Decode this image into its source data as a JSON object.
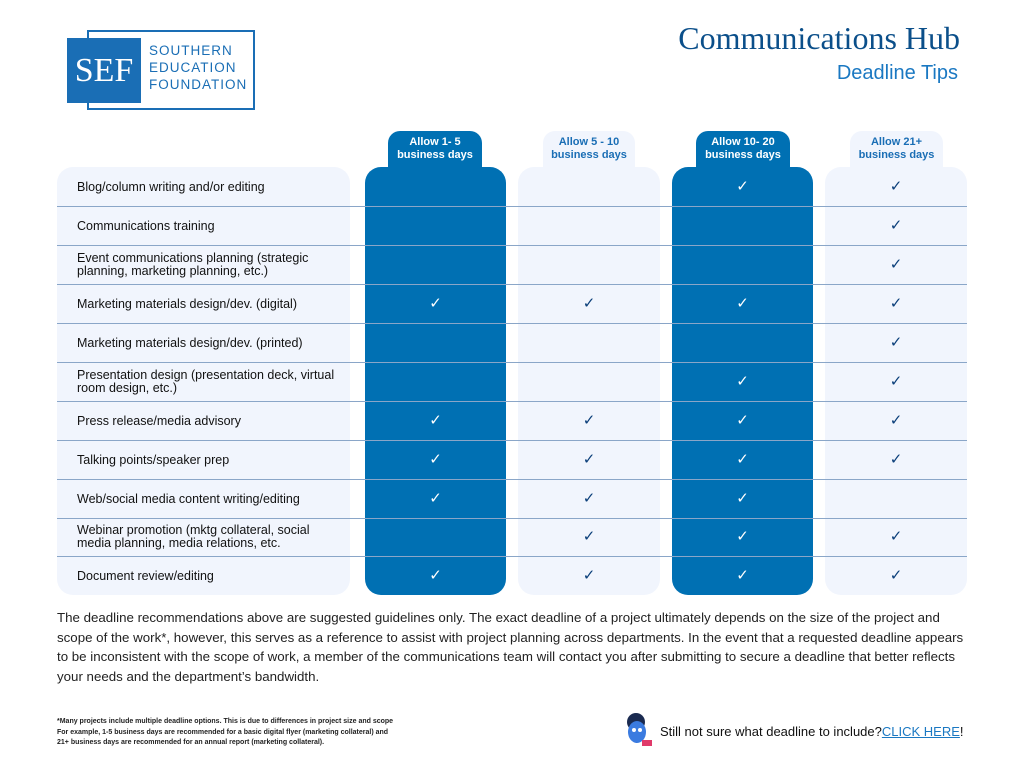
{
  "logo": {
    "abbr": "SEF",
    "line1": "SOUTHERN",
    "line2": "EDUCATION",
    "line3": "FOUNDATION"
  },
  "header": {
    "title": "Communications Hub",
    "subtitle": "Deadline Tips"
  },
  "columns": [
    {
      "line1": "Allow 1- 5",
      "line2": "business days"
    },
    {
      "line1": "Allow 5 - 10",
      "line2": "business days"
    },
    {
      "line1": "Allow 10- 20",
      "line2": "business days"
    },
    {
      "line1": "Allow 21+",
      "line2": "business days"
    }
  ],
  "rows": [
    {
      "label": "Blog/column writing and/or editing",
      "checks": [
        false,
        false,
        true,
        true
      ]
    },
    {
      "label": "Communications training",
      "checks": [
        false,
        false,
        false,
        true
      ]
    },
    {
      "label": "Event communications planning (strategic planning, marketing planning, etc.)",
      "checks": [
        false,
        false,
        false,
        true
      ]
    },
    {
      "label": "Marketing materials design/dev. (digital)",
      "checks": [
        true,
        true,
        true,
        true
      ]
    },
    {
      "label": "Marketing materials design/dev. (printed)",
      "checks": [
        false,
        false,
        false,
        true
      ]
    },
    {
      "label": "Presentation design (presentation deck, virtual room design, etc.)",
      "checks": [
        false,
        false,
        true,
        true
      ]
    },
    {
      "label": "Press release/media advisory",
      "checks": [
        true,
        true,
        true,
        true
      ]
    },
    {
      "label": "Talking points/speaker prep",
      "checks": [
        true,
        true,
        true,
        true
      ]
    },
    {
      "label": "Web/social media content writing/editing",
      "checks": [
        true,
        true,
        true,
        false
      ]
    },
    {
      "label": "Webinar promotion (mktg collateral, social media planning, media relations, etc.",
      "checks": [
        false,
        true,
        true,
        true
      ]
    },
    {
      "label": "Document review/editing",
      "checks": [
        true,
        true,
        true,
        true
      ]
    }
  ],
  "paragraph": "The deadline recommendations above are suggested guidelines only. The exact deadline of a project ultimately depends on the size of the project and scope of the work*, however, this serves as a reference to assist with project planning across departments. In the event that a requested deadline appears to be inconsistent with the scope of work, a member of the communications team will contact you after submitting to secure a deadline that better reflects your needs and the department’s bandwidth.",
  "footnote": {
    "line1": "*Many projects include multiple deadline options. This is due to differences in project size and scope",
    "line2": "For example, 1-5 business days are recommended for a basic digital flyer (marketing collateral) and",
    "line3": "21+ business days are recommended for an annual report (marketing collateral)."
  },
  "cta": {
    "text": "Still not sure what deadline to include? ",
    "link": "CLICK HERE",
    "end": "!"
  },
  "colors": {
    "dark": "#0070b3",
    "light": "#f1f5fd",
    "title": "#0b4f8a"
  }
}
